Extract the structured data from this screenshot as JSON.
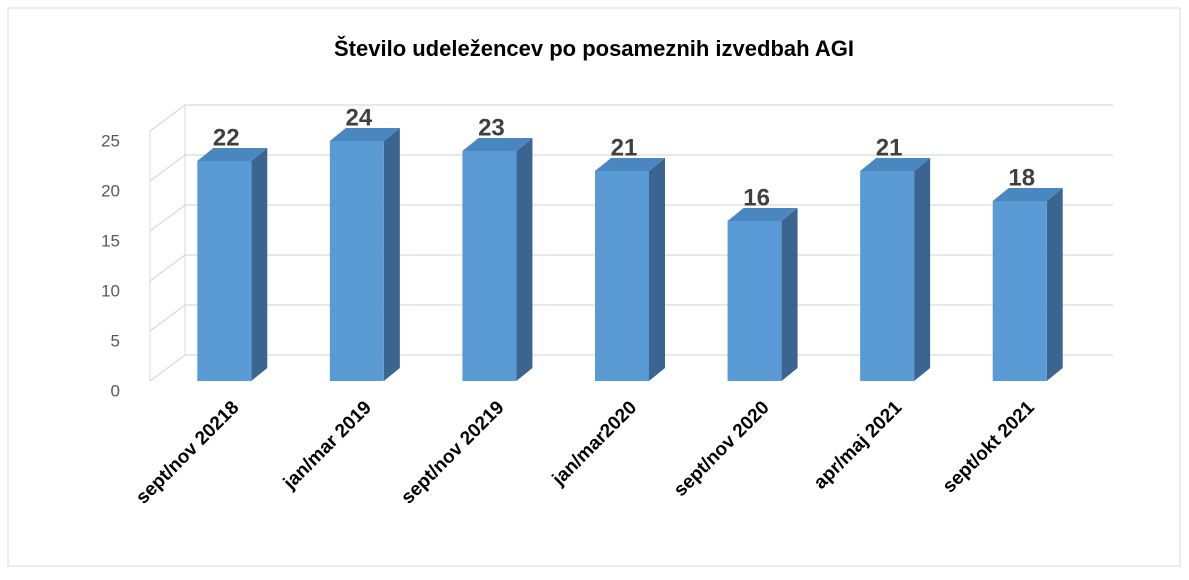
{
  "chart_data": {
    "type": "bar3d",
    "title": "Število udeležencev po posameznih izvedbah AGI",
    "categories": [
      "sept/nov 20218",
      "jan/mar 2019",
      "sept/nov 20219",
      "jan/mar2020",
      "sept/nov 2020",
      "apr/maj 2021",
      "sept/okt 2021"
    ],
    "values": [
      22,
      24,
      23,
      21,
      16,
      21,
      18
    ],
    "color": "#5b9bd5",
    "ylim": [
      0,
      25
    ],
    "yticks": [
      0,
      5,
      10,
      15,
      20,
      25
    ],
    "grid": true
  }
}
